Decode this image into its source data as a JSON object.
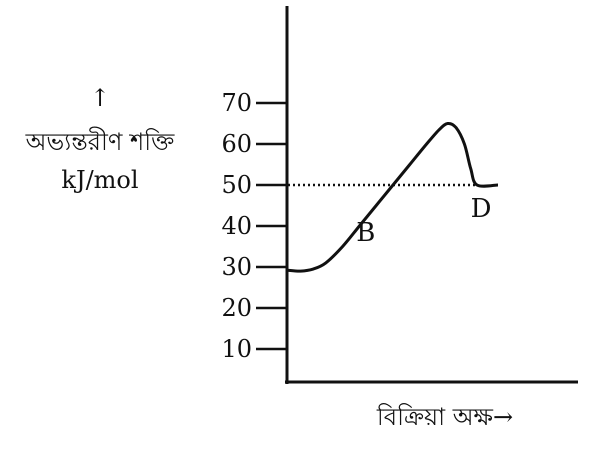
{
  "chart_data": {
    "type": "line",
    "title": "",
    "ylabel_arrow": "↑",
    "ylabel": "অভ্যন্তরীণ শক্তি",
    "yunit": "kJ/mol",
    "xlabel": "বিক্রিয়া অক্ষ→",
    "ylim": [
      0,
      70
    ],
    "y_ticks": [
      10,
      20,
      30,
      40,
      50,
      60,
      70
    ],
    "x": [
      0,
      0.06,
      0.12,
      0.18,
      0.26,
      0.34,
      0.42,
      0.5,
      0.58,
      0.66,
      0.72,
      0.76,
      0.8,
      0.84,
      0.87,
      0.9,
      1.0
    ],
    "values": [
      29.2,
      29,
      29.5,
      31,
      35,
      40,
      45,
      50,
      55,
      60,
      63.5,
      65,
      64,
      60,
      54,
      50,
      50
    ],
    "reference_line": {
      "y": 50,
      "style": "dotted"
    },
    "annotations": [
      {
        "text": "B",
        "x": 0.18,
        "y": 31
      },
      {
        "text": "D",
        "x": 0.9,
        "y": 50
      }
    ],
    "grid": false,
    "legend": "none",
    "colors": {
      "axis": "#111111",
      "line": "#111111"
    }
  }
}
